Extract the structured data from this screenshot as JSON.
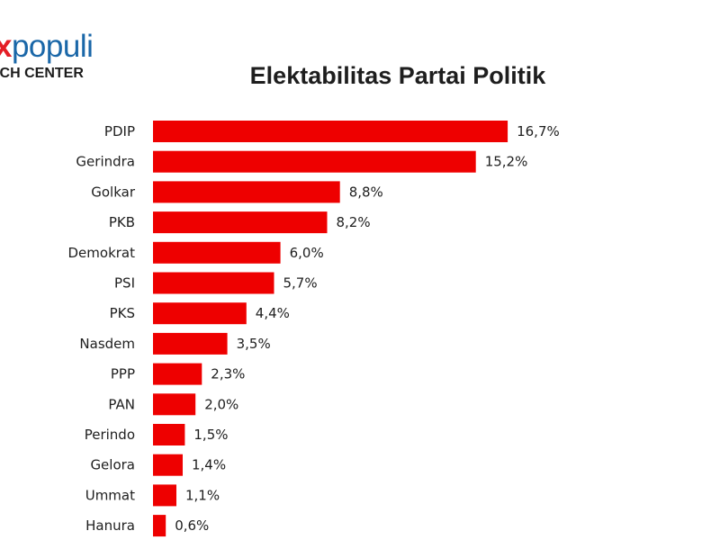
{
  "logo": {
    "x": "x",
    "name": "populi",
    "subtitle": "RCH CENTER"
  },
  "colors": {
    "bar": "#ee0000",
    "logo_blue": "#1a67a8",
    "logo_red": "#e41e26"
  },
  "chart_data": {
    "type": "bar",
    "orientation": "horizontal",
    "title": "Elektabilitas Partai Politik",
    "xlabel": "",
    "ylabel": "",
    "grid": false,
    "legend": "none",
    "xlim": [
      0,
      17
    ],
    "categories": [
      "PDIP",
      "Gerindra",
      "Golkar",
      "PKB",
      "Demokrat",
      "PSI",
      "PKS",
      "Nasdem",
      "PPP",
      "PAN",
      "Perindo",
      "Gelora",
      "Ummat",
      "Hanura"
    ],
    "values": [
      16.7,
      15.2,
      8.8,
      8.2,
      6.0,
      5.7,
      4.4,
      3.5,
      2.3,
      2.0,
      1.5,
      1.4,
      1.1,
      0.6
    ],
    "value_labels": [
      "16,7%",
      "15,2%",
      "8,8%",
      "8,2%",
      "6,0%",
      "5,7%",
      "4,4%",
      "3,5%",
      "2,3%",
      "2,0%",
      "1,5%",
      "1,4%",
      "1,1%",
      "0,6%"
    ]
  }
}
